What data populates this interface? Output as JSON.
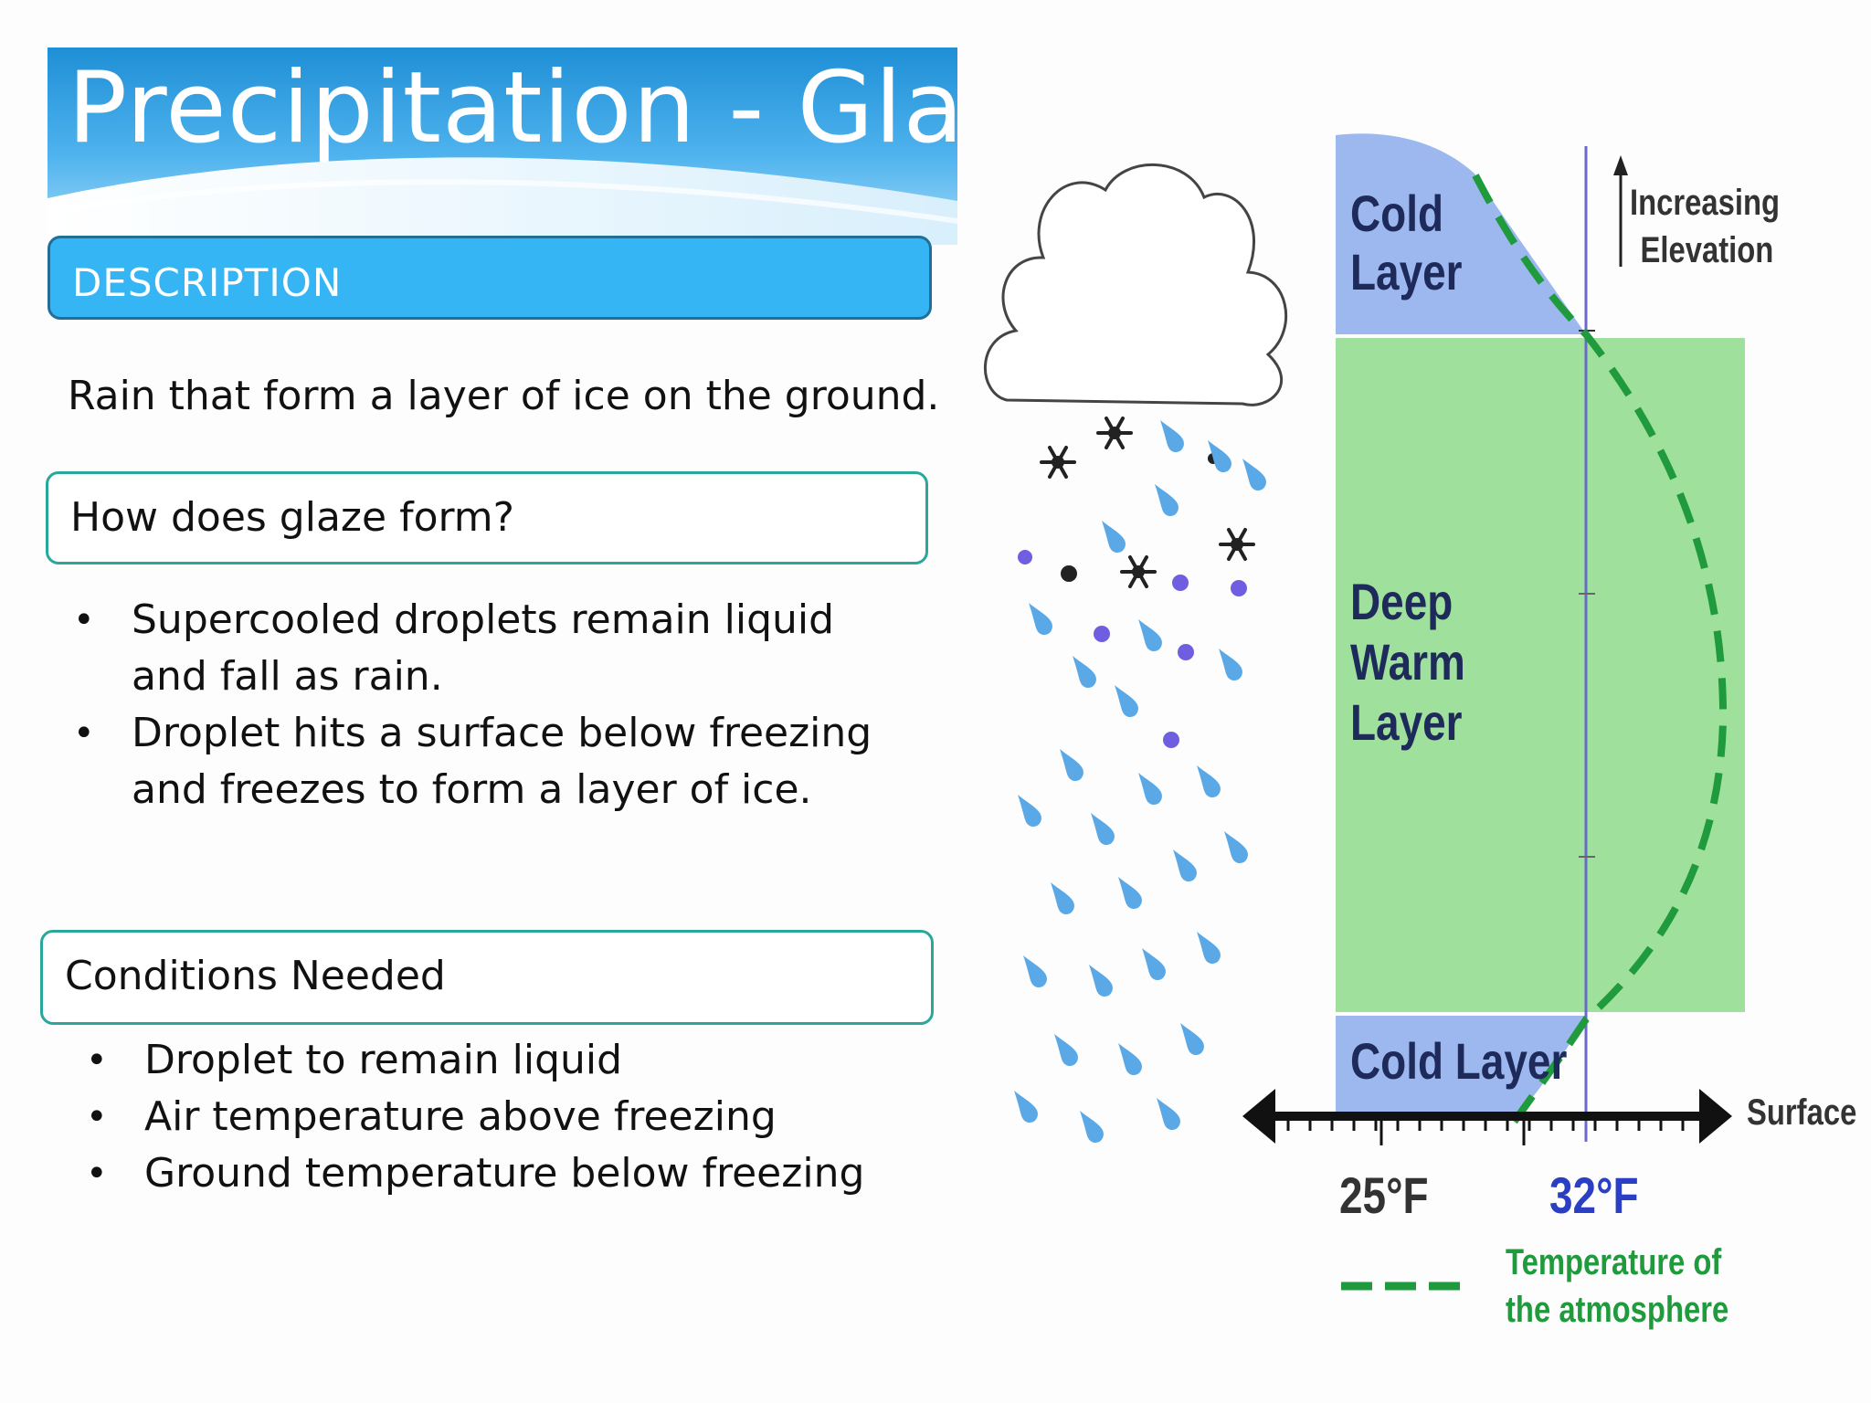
{
  "title": "Precipitation - Glaze",
  "description": {
    "header": "DESCRIPTION",
    "text": "Rain that form a layer of ice on the ground."
  },
  "how": {
    "header": "How does glaze form?",
    "bullets": [
      [
        "Supercooled droplets remain liquid",
        "and fall as rain."
      ],
      [
        "Droplet hits a surface below freezing",
        "and freezes to form a layer of ice."
      ]
    ]
  },
  "conditions": {
    "header": "Conditions Needed",
    "bullets": [
      "Droplet to remain liquid",
      "Air temperature above freezing",
      "Ground temperature below freezing"
    ]
  },
  "diagram": {
    "layers": {
      "top_cold": [
        "Cold",
        "Layer"
      ],
      "warm": [
        "Deep",
        "Warm",
        "Layer"
      ],
      "bottom_cold": "Cold Layer"
    },
    "elevation_label": [
      "Increasing",
      "Elevation"
    ],
    "surface_label": "Surface",
    "temp_low": "25°F",
    "temp_freezing": "32°F",
    "legend": [
      "Temperature of",
      "the atmosphere"
    ],
    "colors": {
      "cold_layer": "#9db8ef",
      "warm_layer": "#9fe09d",
      "temperature_line": "#1f9a3c",
      "freezing_line": "#6a6acd",
      "freezing_label": "#2a3fc4",
      "rain": "#5aa8e6",
      "sleet": "#6f5fe0"
    },
    "icons": [
      "cloud-icon",
      "snowflake-icon",
      "raindrop-icon",
      "ice-pellet-icon"
    ]
  }
}
